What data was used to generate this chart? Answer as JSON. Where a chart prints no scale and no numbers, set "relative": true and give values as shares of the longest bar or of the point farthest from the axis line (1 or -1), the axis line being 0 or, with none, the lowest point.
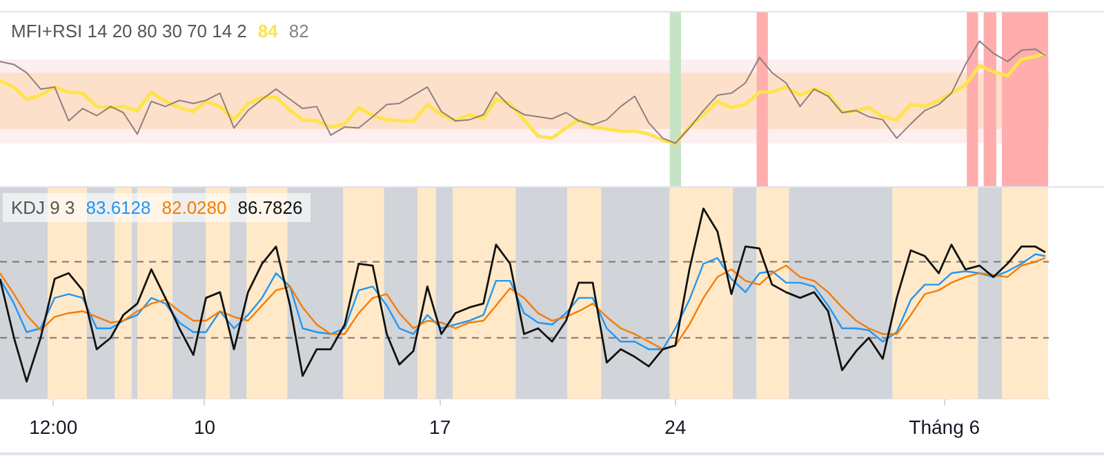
{
  "chart_data": [
    {
      "type": "line",
      "title": "MFI+RSI 14 20 80 30 70 14 2",
      "legend": "top left",
      "relative": true,
      "marker": "none",
      "line_style": "solid",
      "tick_labels": false,
      "xlim": [
        "--05-03T22:00",
        "--06-04T02:30"
      ],
      "x": [
        "--05-03T22:00",
        "--05-04T08:00",
        "--05-04T17:00",
        "--05-05T03:00",
        "--05-05T13:00",
        "--05-05T23:00",
        "--05-06T09:00",
        "--05-06T19:00",
        "--05-07T05:00",
        "--05-07T14:00",
        "--05-08T00:00",
        "--05-08T10:00",
        "--05-08T20:00",
        "--05-09T06:00",
        "--05-09T16:00",
        "--05-10T01:00",
        "--05-10T11:00",
        "--05-10T21:00",
        "--05-11T07:00",
        "--05-11T17:00",
        "--05-12T03:00",
        "--05-12T13:00",
        "--05-12T22:00",
        "--05-13T08:00",
        "--05-13T18:00",
        "--05-14T04:00",
        "--05-14T14:00",
        "--05-15T00:00",
        "--05-15T10:00",
        "--05-15T19:00",
        "--05-16T05:00",
        "--05-16T15:00",
        "--05-17T01:00",
        "--05-17T11:00",
        "--05-17T21:00",
        "--05-18T07:00",
        "--05-18T16:00",
        "--05-19T02:00",
        "--05-19T12:00",
        "--05-19T22:00",
        "--05-20T08:00",
        "--05-20T18:00",
        "--05-21T03:00",
        "--05-21T13:00",
        "--05-21T23:00",
        "--05-22T09:00",
        "--05-22T19:00",
        "--05-23T05:00",
        "--05-23T15:00",
        "--05-24T00:00",
        "--05-24T10:00",
        "--05-24T20:00",
        "--05-25T06:00",
        "--05-25T16:00",
        "--05-26T02:00",
        "--05-26T12:00",
        "--05-26T21:00",
        "--05-27T07:00",
        "--05-27T17:00",
        "--05-28T03:00",
        "--05-28T13:00",
        "--05-28T23:00",
        "--05-29T09:00",
        "--05-29T18:00",
        "--05-30T04:00",
        "--05-30T14:00",
        "--05-31T00:00",
        "--05-31T10:00",
        "--05-31T20:00",
        "--06-01T05:00",
        "--06-01T15:00",
        "--06-02T01:00",
        "--06-02T11:00",
        "--06-02T21:00",
        "--06-03T07:00",
        "--06-03T17:00",
        "--06-04T00:00"
      ],
      "series": [
        {
          "name": "84",
          "color": "#ffe34d",
          "values": [
            0.61,
            0.55,
            0.43,
            0.47,
            0.55,
            0.5,
            0.49,
            0.36,
            0.35,
            0.36,
            0.32,
            0.5,
            0.41,
            0.35,
            0.31,
            0.41,
            0.36,
            0.23,
            0.39,
            0.45,
            0.45,
            0.32,
            0.23,
            0.22,
            0.16,
            0.19,
            0.35,
            0.27,
            0.23,
            0.22,
            0.22,
            0.38,
            0.28,
            0.22,
            0.28,
            0.24,
            0.43,
            0.39,
            0.23,
            0.07,
            0.05,
            0.15,
            0.23,
            0.16,
            0.14,
            0.12,
            0.12,
            0.09,
            0.03,
            0,
            0.16,
            0.28,
            0.41,
            0.35,
            0.38,
            0.5,
            0.5,
            0.55,
            0.47,
            0.53,
            0.49,
            0.3,
            0.32,
            0.35,
            0.26,
            0.23,
            0.38,
            0.36,
            0.42,
            0.49,
            0.57,
            0.76,
            0.7,
            0.66,
            0.82,
            0.85,
            0.88
          ]
        },
        {
          "name": "82",
          "color": "#8c7f7f",
          "values": [
            0.8,
            0.77,
            0.69,
            0.53,
            0.55,
            0.22,
            0.34,
            0.27,
            0.36,
            0.3,
            0.09,
            0.41,
            0.36,
            0.42,
            0.39,
            0.42,
            0.49,
            0.15,
            0.32,
            0.43,
            0.53,
            0.43,
            0.34,
            0.36,
            0.08,
            0.16,
            0.15,
            0.26,
            0.38,
            0.39,
            0.47,
            0.55,
            0.31,
            0.22,
            0.23,
            0.28,
            0.5,
            0.36,
            0.28,
            0.26,
            0.24,
            0.3,
            0.22,
            0.18,
            0.23,
            0.36,
            0.46,
            0.2,
            0.05,
            0,
            0.15,
            0.32,
            0.47,
            0.49,
            0.59,
            0.84,
            0.69,
            0.59,
            0.36,
            0.53,
            0.46,
            0.3,
            0.32,
            0.26,
            0.23,
            0.05,
            0.19,
            0.32,
            0.38,
            0.49,
            0.77,
            1,
            0.88,
            0.8,
            0.91,
            0.92,
            0.86
          ]
        }
      ],
      "bands": [
        {
          "axis": "y",
          "from": 0,
          "to": 0.82,
          "color": "#fdeef0"
        },
        {
          "axis": "y",
          "from": 0.14,
          "to": 0.69,
          "color": "#fde0c9"
        },
        {
          "axis": "x",
          "from": "--05-23T20:00",
          "to": "--05-24T04:00",
          "color": "#c6e3c4"
        },
        {
          "axis": "x",
          "from": "--05-26T10:00",
          "to": "--05-26T18:00",
          "color": "#ffadad"
        },
        {
          "axis": "x",
          "from": "--06-01T16:00",
          "to": "--06-02T00:00",
          "color": "#ffadad"
        },
        {
          "axis": "x",
          "from": "--06-02T04:00",
          "to": "--06-02T13:00",
          "color": "#ffadad"
        },
        {
          "axis": "x",
          "from": "--06-02T17:00",
          "to": "--06-04T02:00",
          "color": "#ffadad"
        }
      ]
    },
    {
      "type": "line",
      "title": "KDJ 9 3",
      "legend": "top left",
      "relative": true,
      "marker": "none",
      "line_style": "solid",
      "tick_labels": "x",
      "xlim": [
        "--05-03T22:00",
        "--06-04T02:30"
      ],
      "xticks": [
        {
          "value": "--05-05T12:00",
          "label": "12:00"
        },
        {
          "value": "--05-10",
          "label": "10"
        },
        {
          "value": "--05-17",
          "label": "17"
        },
        {
          "value": "--05-24",
          "label": "24"
        },
        {
          "value": "--06-01",
          "label": "Tháng 6"
        }
      ],
      "x": [
        "--05-03T22:00",
        "--05-04T08:00",
        "--05-04T17:00",
        "--05-05T03:00",
        "--05-05T13:00",
        "--05-05T23:00",
        "--05-06T09:00",
        "--05-06T19:00",
        "--05-07T05:00",
        "--05-07T14:00",
        "--05-08T00:00",
        "--05-08T10:00",
        "--05-08T20:00",
        "--05-09T06:00",
        "--05-09T16:00",
        "--05-10T01:00",
        "--05-10T11:00",
        "--05-10T21:00",
        "--05-11T07:00",
        "--05-11T17:00",
        "--05-12T03:00",
        "--05-12T13:00",
        "--05-12T22:00",
        "--05-13T08:00",
        "--05-13T18:00",
        "--05-14T04:00",
        "--05-14T14:00",
        "--05-15T00:00",
        "--05-15T10:00",
        "--05-15T19:00",
        "--05-16T05:00",
        "--05-16T15:00",
        "--05-17T01:00",
        "--05-17T11:00",
        "--05-17T21:00",
        "--05-18T07:00",
        "--05-18T16:00",
        "--05-19T02:00",
        "--05-19T12:00",
        "--05-19T22:00",
        "--05-20T08:00",
        "--05-20T18:00",
        "--05-21T03:00",
        "--05-21T13:00",
        "--05-21T23:00",
        "--05-22T09:00",
        "--05-22T19:00",
        "--05-23T05:00",
        "--05-23T15:00",
        "--05-24T00:00",
        "--05-24T10:00",
        "--05-24T20:00",
        "--05-25T06:00",
        "--05-25T16:00",
        "--05-26T02:00",
        "--05-26T12:00",
        "--05-26T21:00",
        "--05-27T07:00",
        "--05-27T17:00",
        "--05-28T03:00",
        "--05-28T13:00",
        "--05-28T23:00",
        "--05-29T09:00",
        "--05-29T18:00",
        "--05-30T04:00",
        "--05-30T14:00",
        "--05-31T00:00",
        "--05-31T10:00",
        "--05-31T20:00",
        "--06-01T05:00",
        "--06-01T15:00",
        "--06-02T01:00",
        "--06-02T11:00",
        "--06-02T21:00",
        "--06-03T07:00",
        "--06-03T17:00",
        "--06-04T00:00"
      ],
      "series": [
        {
          "name": "83.6128",
          "color": "#2196f3",
          "values": [
            0.63,
            0.5,
            0.35,
            0.37,
            0.53,
            0.55,
            0.53,
            0.37,
            0.37,
            0.41,
            0.44,
            0.53,
            0.5,
            0.4,
            0.35,
            0.35,
            0.46,
            0.37,
            0.44,
            0.53,
            0.66,
            0.59,
            0.37,
            0.35,
            0.34,
            0.37,
            0.57,
            0.59,
            0.49,
            0.37,
            0.34,
            0.44,
            0.37,
            0.39,
            0.41,
            0.44,
            0.62,
            0.62,
            0.45,
            0.4,
            0.39,
            0.45,
            0.53,
            0.53,
            0.37,
            0.3,
            0.3,
            0.26,
            0.26,
            0.37,
            0.52,
            0.71,
            0.74,
            0.63,
            0.56,
            0.66,
            0.67,
            0.61,
            0.61,
            0.59,
            0.49,
            0.37,
            0.37,
            0.36,
            0.3,
            0.35,
            0.52,
            0.6,
            0.6,
            0.66,
            0.67,
            0.66,
            0.64,
            0.67,
            0.71,
            0.76,
            0.75
          ]
        },
        {
          "name": "82.0280",
          "color": "#f57c00",
          "values": [
            0.66,
            0.55,
            0.44,
            0.36,
            0.43,
            0.45,
            0.46,
            0.43,
            0.4,
            0.41,
            0.46,
            0.5,
            0.52,
            0.46,
            0.41,
            0.41,
            0.46,
            0.43,
            0.41,
            0.49,
            0.57,
            0.59,
            0.48,
            0.39,
            0.34,
            0.34,
            0.45,
            0.53,
            0.55,
            0.45,
            0.37,
            0.41,
            0.4,
            0.37,
            0.4,
            0.41,
            0.49,
            0.58,
            0.53,
            0.45,
            0.41,
            0.43,
            0.46,
            0.5,
            0.43,
            0.37,
            0.34,
            0.3,
            0.26,
            0.28,
            0.39,
            0.53,
            0.64,
            0.68,
            0.62,
            0.6,
            0.66,
            0.7,
            0.64,
            0.62,
            0.56,
            0.48,
            0.41,
            0.37,
            0.34,
            0.34,
            0.44,
            0.55,
            0.57,
            0.61,
            0.64,
            0.66,
            0.65,
            0.64,
            0.7,
            0.72,
            0.74
          ]
        },
        {
          "name": "86.7826",
          "color": "#111111",
          "values": [
            0.63,
            0.32,
            0.09,
            0.32,
            0.63,
            0.66,
            0.57,
            0.26,
            0.32,
            0.44,
            0.5,
            0.68,
            0.53,
            0.37,
            0.23,
            0.53,
            0.56,
            0.26,
            0.56,
            0.71,
            0.8,
            0.49,
            0.12,
            0.26,
            0.26,
            0.39,
            0.71,
            0.7,
            0.34,
            0.18,
            0.25,
            0.59,
            0.34,
            0.45,
            0.48,
            0.5,
            0.81,
            0.71,
            0.34,
            0.37,
            0.3,
            0.41,
            0.61,
            0.61,
            0.19,
            0.26,
            0.22,
            0.17,
            0.26,
            0.28,
            0.68,
            1,
            0.88,
            0.55,
            0.8,
            0.79,
            0.6,
            0.56,
            0.53,
            0.56,
            0.46,
            0.15,
            0.25,
            0.32,
            0.21,
            0.53,
            0.78,
            0.75,
            0.66,
            0.81,
            0.68,
            0.7,
            0.64,
            0.71,
            0.8,
            0.8,
            0.77
          ]
        }
      ],
      "ref_lines": [
        {
          "axis": "y",
          "value": 0.72,
          "color": "#777777",
          "line_style": "dashed"
        },
        {
          "axis": "y",
          "value": 0.32,
          "color": "#777777",
          "line_style": "dashed"
        }
      ],
      "bands": [
        {
          "axis": "x",
          "from": "--05-03T22:00",
          "to": "--05-05T08:00",
          "color": "#d1d4d8"
        },
        {
          "axis": "x",
          "from": "--05-05T08:00",
          "to": "--05-06T12:00",
          "color": "#ffe9c8"
        },
        {
          "axis": "x",
          "from": "--05-06T12:00",
          "to": "--05-07T08:00",
          "color": "#d1d4d8"
        },
        {
          "axis": "x",
          "from": "--05-07T08:00",
          "to": "--05-07T20:00",
          "color": "#ffe9c8"
        },
        {
          "axis": "x",
          "from": "--05-07T20:00",
          "to": "--05-08T00:00",
          "color": "#d1d4d8"
        },
        {
          "axis": "x",
          "from": "--05-08T00:00",
          "to": "--05-09T01:00",
          "color": "#ffe9c8"
        },
        {
          "axis": "x",
          "from": "--05-09T01:00",
          "to": "--05-10T01:00",
          "color": "#d1d4d8"
        },
        {
          "axis": "x",
          "from": "--05-10T01:00",
          "to": "--05-10T18:00",
          "color": "#ffe9c8"
        },
        {
          "axis": "x",
          "from": "--05-10T18:00",
          "to": "--05-11T06:00",
          "color": "#d1d4d8"
        },
        {
          "axis": "x",
          "from": "--05-11T06:00",
          "to": "--05-12T11:00",
          "color": "#ffe9c8"
        },
        {
          "axis": "x",
          "from": "--05-12T11:00",
          "to": "--05-14T03:00",
          "color": "#d1d4d8"
        },
        {
          "axis": "x",
          "from": "--05-14T03:00",
          "to": "--05-15T08:00",
          "color": "#ffe9c8"
        },
        {
          "axis": "x",
          "from": "--05-15T08:00",
          "to": "--05-16T08:00",
          "color": "#d1d4d8"
        },
        {
          "axis": "x",
          "from": "--05-16T08:00",
          "to": "--05-16T21:00",
          "color": "#ffe9c8"
        },
        {
          "axis": "x",
          "from": "--05-16T21:00",
          "to": "--05-17T09:00",
          "color": "#d1d4d8"
        },
        {
          "axis": "x",
          "from": "--05-17T09:00",
          "to": "--05-19T06:00",
          "color": "#ffe9c8"
        },
        {
          "axis": "x",
          "from": "--05-19T06:00",
          "to": "--05-20T19:00",
          "color": "#d1d4d8"
        },
        {
          "axis": "x",
          "from": "--05-20T19:00",
          "to": "--05-21T19:00",
          "color": "#ffe9c8"
        },
        {
          "axis": "x",
          "from": "--05-21T19:00",
          "to": "--05-23T20:00",
          "color": "#d1d4d8"
        },
        {
          "axis": "x",
          "from": "--05-23T20:00",
          "to": "--05-25T17:00",
          "color": "#ffe9c8"
        },
        {
          "axis": "x",
          "from": "--05-25T17:00",
          "to": "--05-26T10:00",
          "color": "#d1d4d8"
        },
        {
          "axis": "x",
          "from": "--05-26T10:00",
          "to": "--05-27T09:00",
          "color": "#ffe9c8"
        },
        {
          "axis": "x",
          "from": "--05-27T09:00",
          "to": "--05-30T11:00",
          "color": "#d1d4d8"
        },
        {
          "axis": "x",
          "from": "--05-30T11:00",
          "to": "--06-02T00:00",
          "color": "#ffe9c8"
        },
        {
          "axis": "x",
          "from": "--06-02T00:00",
          "to": "--06-02T17:00",
          "color": "#d1d4d8"
        },
        {
          "axis": "x",
          "from": "--06-02T17:00",
          "to": "--06-04T02:00",
          "color": "#ffe9c8"
        }
      ]
    }
  ]
}
